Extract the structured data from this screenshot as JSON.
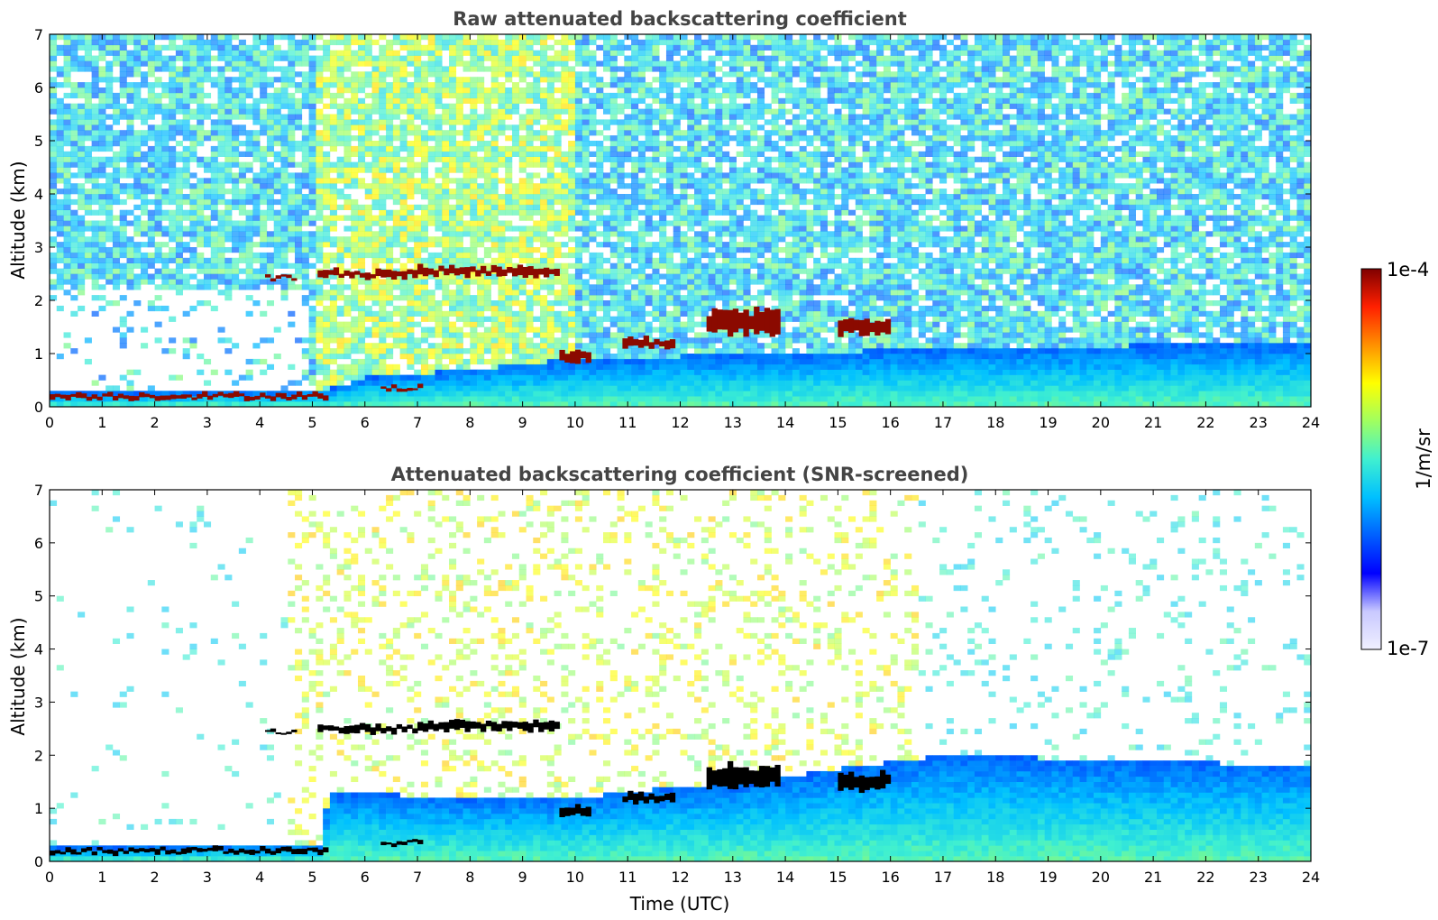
{
  "chart_data": [
    {
      "type": "heatmap",
      "title": "Raw attenuated backscattering coefficient",
      "xlabel": "",
      "ylabel": "Altitude (km)",
      "xlim": [
        0,
        24
      ],
      "ylim": [
        0,
        7
      ],
      "xticks": [
        "0",
        "1",
        "2",
        "3",
        "4",
        "5",
        "6",
        "7",
        "8",
        "9",
        "10",
        "11",
        "12",
        "13",
        "14",
        "15",
        "16",
        "17",
        "18",
        "19",
        "20",
        "21",
        "22",
        "23",
        "24"
      ],
      "yticks": [
        "0",
        "1",
        "2",
        "3",
        "4",
        "5",
        "6",
        "7"
      ],
      "boundary_layer_top_km": [
        {
          "t": 0,
          "z": 0.25
        },
        {
          "t": 5.2,
          "z": 0.3
        },
        {
          "t": 6,
          "z": 0.55
        },
        {
          "t": 8,
          "z": 0.7
        },
        {
          "t": 10,
          "z": 0.9
        },
        {
          "t": 14,
          "z": 1.0
        },
        {
          "t": 17,
          "z": 1.1
        },
        {
          "t": 24,
          "z": 1.2
        }
      ],
      "cloud_layers": [
        {
          "t_start": 0,
          "t_end": 5.3,
          "z_km": 0.2,
          "thickness_km": 0.08
        },
        {
          "t_start": 4.1,
          "t_end": 4.7,
          "z_km": 2.43,
          "thickness_km": 0.05
        },
        {
          "t_start": 5.1,
          "t_end": 7.0,
          "z_km": 2.5,
          "thickness_km": 0.12
        },
        {
          "t_start": 7.0,
          "t_end": 9.7,
          "z_km": 2.55,
          "thickness_km": 0.15
        },
        {
          "t_start": 6.3,
          "t_end": 7.1,
          "z_km": 0.35,
          "thickness_km": 0.06
        },
        {
          "t_start": 9.7,
          "t_end": 10.3,
          "z_km": 0.95,
          "thickness_km": 0.2
        },
        {
          "t_start": 10.9,
          "t_end": 11.9,
          "z_km": 1.2,
          "thickness_km": 0.15
        },
        {
          "t_start": 12.5,
          "t_end": 13.9,
          "z_km": 1.6,
          "thickness_km": 0.4
        },
        {
          "t_start": 15.0,
          "t_end": 16.0,
          "z_km": 1.5,
          "thickness_km": 0.25
        }
      ],
      "noise_level": "high"
    },
    {
      "type": "heatmap",
      "title": "Attenuated backscattering coefficient (SNR-screened)",
      "xlabel": "Time (UTC)",
      "ylabel": "Altitude (km)",
      "xlim": [
        0,
        24
      ],
      "ylim": [
        0,
        7
      ],
      "xticks": [
        "0",
        "1",
        "2",
        "3",
        "4",
        "5",
        "6",
        "7",
        "8",
        "9",
        "10",
        "11",
        "12",
        "13",
        "14",
        "15",
        "16",
        "17",
        "18",
        "19",
        "20",
        "21",
        "22",
        "23",
        "24"
      ],
      "yticks": [
        "0",
        "1",
        "2",
        "3",
        "4",
        "5",
        "6",
        "7"
      ],
      "boundary_layer_top_km": [
        {
          "t": 0,
          "z": 0.25
        },
        {
          "t": 5.2,
          "z": 0.3
        },
        {
          "t": 5.3,
          "z": 1.3
        },
        {
          "t": 8,
          "z": 1.2
        },
        {
          "t": 10,
          "z": 1.2
        },
        {
          "t": 14,
          "z": 1.6
        },
        {
          "t": 17,
          "z": 2.0
        },
        {
          "t": 24,
          "z": 1.8
        }
      ],
      "cloud_layers": [
        {
          "t_start": 0,
          "t_end": 5.3,
          "z_km": 0.2,
          "thickness_km": 0.08
        },
        {
          "t_start": 4.1,
          "t_end": 4.7,
          "z_km": 2.43,
          "thickness_km": 0.05
        },
        {
          "t_start": 5.1,
          "t_end": 7.0,
          "z_km": 2.5,
          "thickness_km": 0.12
        },
        {
          "t_start": 7.0,
          "t_end": 9.7,
          "z_km": 2.55,
          "thickness_km": 0.15
        },
        {
          "t_start": 6.3,
          "t_end": 7.1,
          "z_km": 0.35,
          "thickness_km": 0.06
        },
        {
          "t_start": 9.7,
          "t_end": 10.3,
          "z_km": 0.95,
          "thickness_km": 0.2
        },
        {
          "t_start": 10.9,
          "t_end": 11.9,
          "z_km": 1.2,
          "thickness_km": 0.15
        },
        {
          "t_start": 12.5,
          "t_end": 13.9,
          "z_km": 1.6,
          "thickness_km": 0.4
        },
        {
          "t_start": 15.0,
          "t_end": 16.0,
          "z_km": 1.5,
          "thickness_km": 0.25
        }
      ],
      "noise_level": "screened"
    }
  ],
  "colorbar": {
    "max_label": "1e-4",
    "min_label": "1e-7",
    "unit_label": "1/m/sr",
    "colormap": "jet",
    "colors": [
      "#f0f0ff",
      "#c8c8ff",
      "#0000ff",
      "#0060ff",
      "#00c0ff",
      "#40f0d0",
      "#a0ff60",
      "#ffff00",
      "#ff9000",
      "#ff2000",
      "#800000"
    ]
  }
}
